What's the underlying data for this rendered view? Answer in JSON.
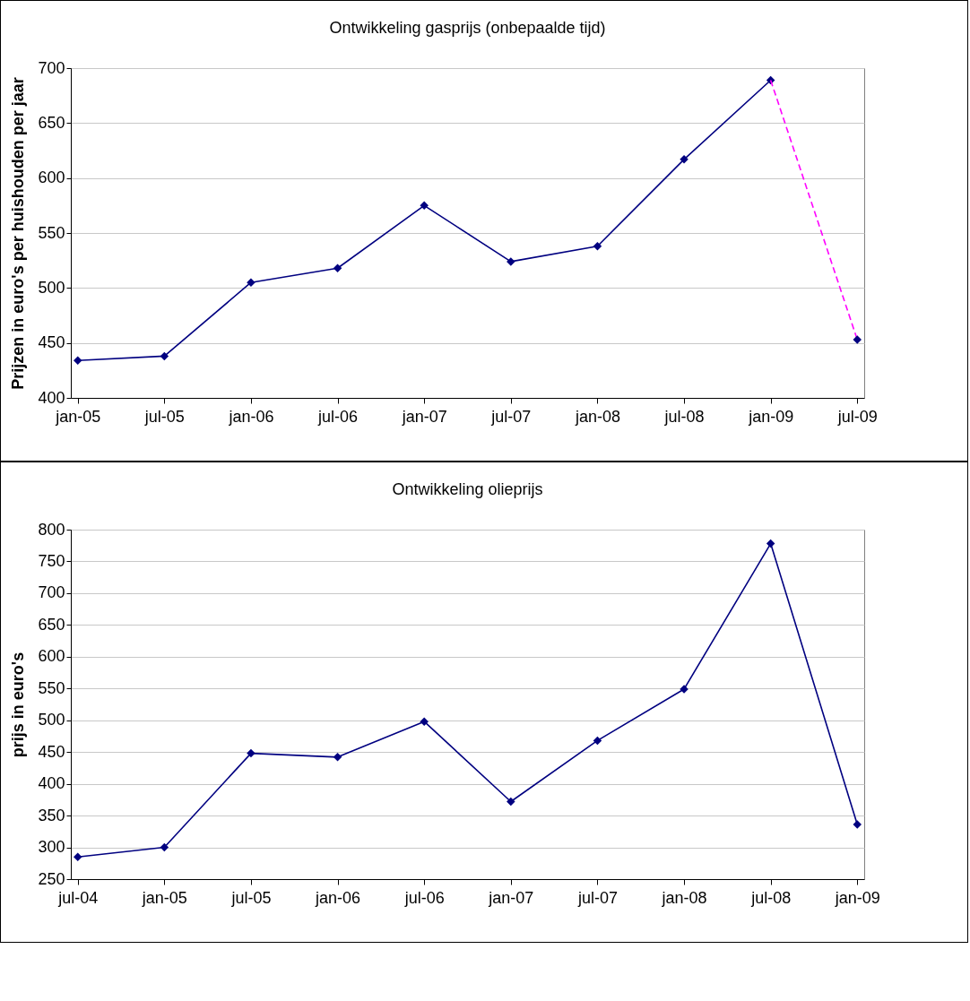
{
  "chart_data": [
    {
      "type": "line",
      "title": "Ontwikkeling gasprijs (onbepaalde tijd)",
      "ylabel": "Prijzen in euro's per huishouden per jaar",
      "categories": [
        "jan-05",
        "jul-05",
        "jan-06",
        "jul-06",
        "jan-07",
        "jul-07",
        "jan-08",
        "jul-08",
        "jan-09",
        "jul-09"
      ],
      "series": [
        {
          "type": "line",
          "color": "#000080",
          "marker": "diamond",
          "line_style": "solid",
          "values": [
            434,
            438,
            505,
            518,
            575,
            524,
            538,
            617,
            689,
            null
          ]
        },
        {
          "type": "line",
          "color": "#ff00ff",
          "marker": "none",
          "line_style": "dashed",
          "values": [
            null,
            null,
            null,
            null,
            null,
            null,
            null,
            null,
            689,
            453
          ]
        },
        {
          "type": "scatter",
          "color": "#000080",
          "marker": "diamond",
          "values": [
            null,
            null,
            null,
            null,
            null,
            null,
            null,
            null,
            null,
            453
          ]
        }
      ],
      "ylim": [
        400,
        700
      ],
      "yticks": [
        400,
        450,
        500,
        550,
        600,
        650,
        700
      ],
      "grid": "y"
    },
    {
      "type": "line",
      "title": "Ontwikkeling olieprijs",
      "ylabel": "prijs in euro's",
      "categories": [
        "jul-04",
        "jan-05",
        "jul-05",
        "jan-06",
        "jul-06",
        "jan-07",
        "jul-07",
        "jan-08",
        "jul-08",
        "jan-09"
      ],
      "series": [
        {
          "type": "line",
          "color": "#000080",
          "marker": "diamond",
          "line_style": "solid",
          "values": [
            285,
            300,
            448,
            442,
            498,
            372,
            468,
            549,
            778,
            336
          ]
        }
      ],
      "ylim": [
        250,
        800
      ],
      "yticks": [
        250,
        300,
        350,
        400,
        450,
        500,
        550,
        600,
        650,
        700,
        750,
        800
      ],
      "grid": "y"
    }
  ]
}
